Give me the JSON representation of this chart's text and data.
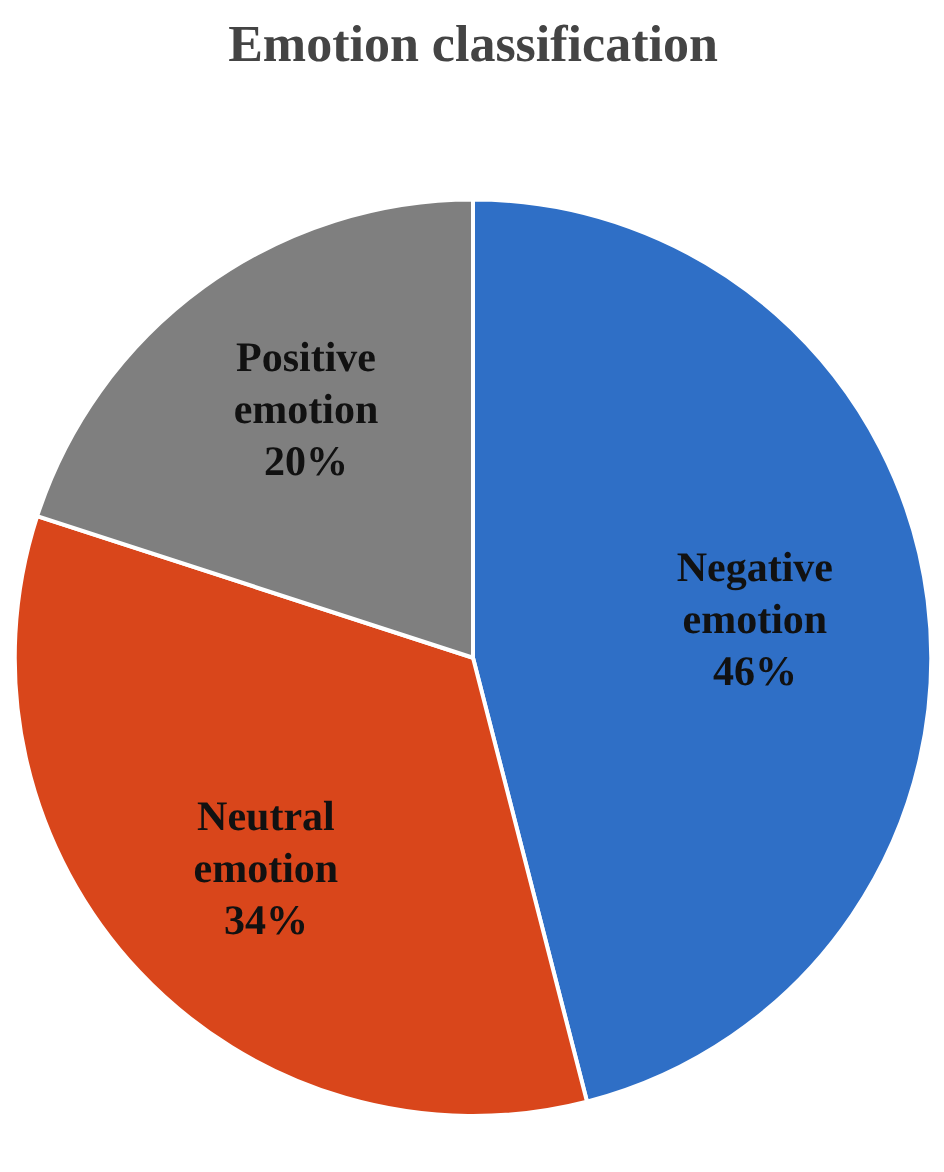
{
  "chart_data": {
    "type": "pie",
    "title": "Emotion classification",
    "categories": [
      "Negative emotion",
      "Neutral emotion",
      "Positive emotion"
    ],
    "values": [
      46,
      34,
      20
    ],
    "colors": [
      "#2f6fc6",
      "#d9461b",
      "#7f7f7f"
    ],
    "value_labels": [
      "46%",
      "34%",
      "20%"
    ],
    "legend": false
  }
}
